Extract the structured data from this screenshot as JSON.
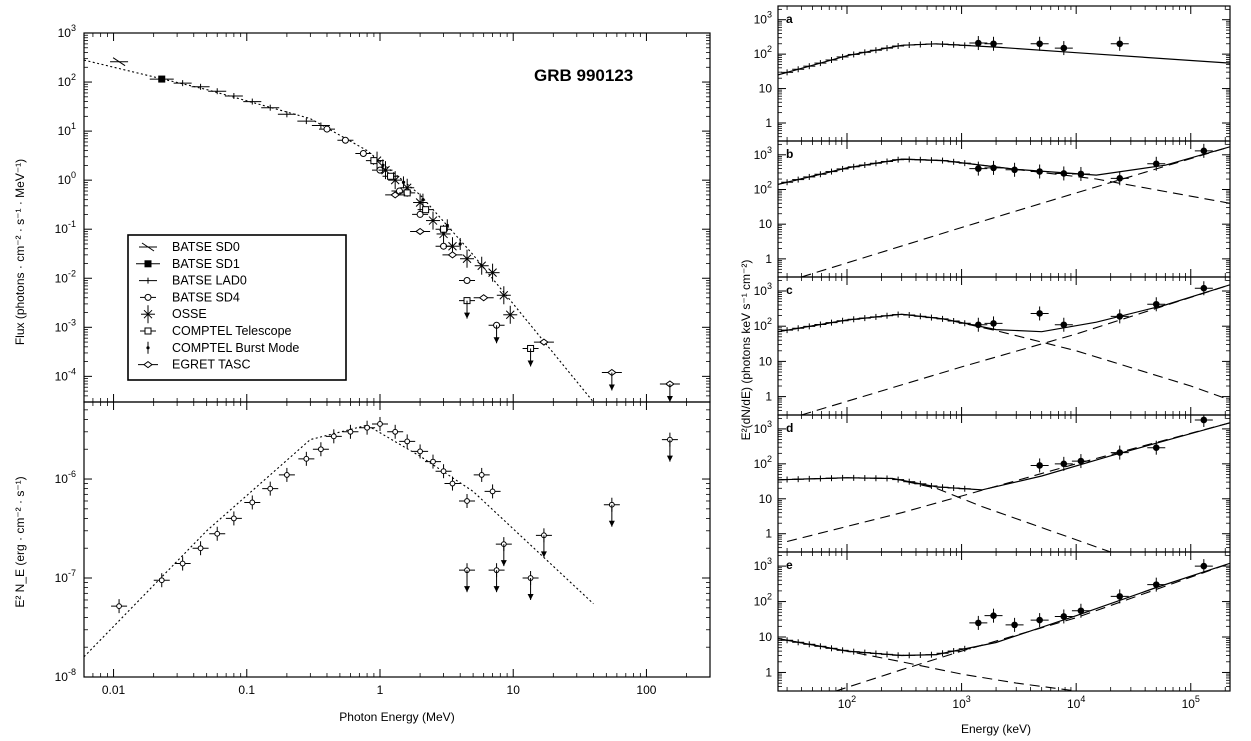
{
  "chart_data": [
    {
      "type": "scatter",
      "panel": "left-top",
      "title": "GRB 990123",
      "xlabel": "Photon Energy (MeV)",
      "ylabel": "Flux (photons · cm⁻² · s⁻¹ · MeV⁻¹)",
      "xscale": "log",
      "yscale": "log",
      "xlim": [
        0.006,
        300
      ],
      "ylim": [
        3e-05,
        1000
      ],
      "x_ticks": [
        0.01,
        0.1,
        1,
        10,
        100
      ],
      "x_tick_labels": [
        "0.01",
        "0.1",
        "1",
        "10",
        "100"
      ],
      "y_ticks": [
        0.0001,
        0.001,
        0.01,
        0.1,
        1,
        10,
        100,
        1000
      ],
      "y_tick_labels": [
        {
          "base": "10",
          "exp": "-4"
        },
        {
          "base": "10",
          "exp": "-3"
        },
        {
          "base": "10",
          "exp": "-2"
        },
        {
          "base": "10",
          "exp": "-1"
        },
        {
          "base": "10",
          "exp": "0"
        },
        {
          "base": "10",
          "exp": "1"
        },
        {
          "base": "10",
          "exp": "2"
        },
        {
          "base": "10",
          "exp": "3"
        }
      ],
      "legend": {
        "placement": "lower-left",
        "entries": [
          "BATSE SD0",
          "BATSE SD1",
          "BATSE LAD0",
          "BATSE SD4",
          "OSSE",
          "COMPTEL Telescope",
          "COMPTEL Burst Mode",
          "EGRET TASC"
        ]
      },
      "model_line": {
        "x": [
          0.006,
          0.05,
          0.3,
          0.8,
          2,
          5,
          40
        ],
        "y": [
          280,
          70,
          18,
          4,
          0.5,
          0.03,
          3e-05
        ]
      },
      "series": [
        {
          "name": "BATSE SD0",
          "marker": "slash",
          "points": [
            {
              "x": 0.011,
              "y": 260
            }
          ]
        },
        {
          "name": "BATSE SD1",
          "marker": "filled-square",
          "points": [
            {
              "x": 0.023,
              "y": 115
            }
          ]
        },
        {
          "name": "BATSE LAD0",
          "marker": "dash",
          "points": [
            {
              "x": 0.033,
              "y": 95
            },
            {
              "x": 0.045,
              "y": 80
            },
            {
              "x": 0.06,
              "y": 65
            },
            {
              "x": 0.08,
              "y": 52
            },
            {
              "x": 0.11,
              "y": 40
            },
            {
              "x": 0.15,
              "y": 30
            },
            {
              "x": 0.2,
              "y": 22
            },
            {
              "x": 0.28,
              "y": 16
            },
            {
              "x": 0.36,
              "y": 13
            }
          ]
        },
        {
          "name": "BATSE SD4",
          "marker": "open-circle",
          "points": [
            {
              "x": 0.4,
              "y": 11
            },
            {
              "x": 0.55,
              "y": 6.5
            },
            {
              "x": 0.75,
              "y": 3.5
            },
            {
              "x": 1.0,
              "y": 1.6
            },
            {
              "x": 1.4,
              "y": 0.6
            },
            {
              "x": 2.0,
              "y": 0.2
            },
            {
              "x": 3.0,
              "y": 0.045
            },
            {
              "x": 4.5,
              "y": 0.009
            },
            {
              "x": 7.5,
              "y": 0.0011
            }
          ]
        },
        {
          "name": "OSSE",
          "marker": "asterisk",
          "points": [
            {
              "x": 0.95,
              "y": 2.5
            },
            {
              "x": 1.1,
              "y": 1.6
            },
            {
              "x": 1.3,
              "y": 1.0
            },
            {
              "x": 1.6,
              "y": 0.7
            },
            {
              "x": 2.0,
              "y": 0.35
            },
            {
              "x": 2.5,
              "y": 0.15
            },
            {
              "x": 3.0,
              "y": 0.08
            },
            {
              "x": 3.5,
              "y": 0.045
            },
            {
              "x": 4.5,
              "y": 0.025
            },
            {
              "x": 5.8,
              "y": 0.018
            },
            {
              "x": 7.0,
              "y": 0.013
            },
            {
              "x": 8.5,
              "y": 0.0045
            },
            {
              "x": 9.5,
              "y": 0.0018
            }
          ]
        },
        {
          "name": "COMPTEL Telescope",
          "marker": "open-square",
          "points": [
            {
              "x": 0.9,
              "y": 2.5
            },
            {
              "x": 1.2,
              "y": 1.2
            },
            {
              "x": 1.6,
              "y": 0.55
            },
            {
              "x": 2.2,
              "y": 0.25
            },
            {
              "x": 3.0,
              "y": 0.1
            },
            {
              "x": 4.5,
              "y": 0.0035
            },
            {
              "x": 13.5,
              "y": 0.00037
            }
          ]
        },
        {
          "name": "COMPTEL Burst Mode",
          "marker": "small-dot",
          "points": [
            {
              "x": 1.05,
              "y": 2.0
            },
            {
              "x": 1.5,
              "y": 0.9
            },
            {
              "x": 2.1,
              "y": 0.4
            },
            {
              "x": 3.2,
              "y": 0.12
            },
            {
              "x": 4.0,
              "y": 0.05
            }
          ]
        },
        {
          "name": "EGRET TASC",
          "marker": "open-diamond",
          "points": [
            {
              "x": 1.3,
              "y": 0.5
            },
            {
              "x": 2.0,
              "y": 0.09
            },
            {
              "x": 3.5,
              "y": 0.03
            },
            {
              "x": 6.0,
              "y": 0.004
            },
            {
              "x": 17,
              "y": 0.0005
            },
            {
              "x": 55,
              "y": 0.00012
            },
            {
              "x": 150,
              "y": 7e-05
            }
          ]
        }
      ]
    },
    {
      "type": "scatter",
      "panel": "left-bottom",
      "xlabel": "Photon Energy (MeV)",
      "ylabel": "E² N_E (erg · cm⁻² · s⁻¹)",
      "xscale": "log",
      "yscale": "log",
      "xlim": [
        0.006,
        300
      ],
      "ylim": [
        1e-08,
        6e-06
      ],
      "y_ticks": [
        1e-08,
        1e-07,
        1e-06
      ],
      "y_tick_labels": [
        {
          "base": "10",
          "exp": "-8"
        },
        {
          "base": "10",
          "exp": "-7"
        },
        {
          "base": "10",
          "exp": "-6"
        }
      ],
      "model_line": {
        "x": [
          0.006,
          0.05,
          0.3,
          0.8,
          2,
          5,
          40
        ],
        "y": [
          1.6e-08,
          3e-07,
          2.5e-06,
          3.5e-06,
          1.7e-06,
          7.5e-07,
          5.5e-08
        ]
      },
      "points": [
        {
          "x": 0.011,
          "y": 5.2e-08
        },
        {
          "x": 0.023,
          "y": 9.5e-08
        },
        {
          "x": 0.033,
          "y": 1.4e-07
        },
        {
          "x": 0.045,
          "y": 2e-07
        },
        {
          "x": 0.06,
          "y": 2.8e-07
        },
        {
          "x": 0.08,
          "y": 4e-07
        },
        {
          "x": 0.11,
          "y": 5.8e-07
        },
        {
          "x": 0.15,
          "y": 8e-07
        },
        {
          "x": 0.2,
          "y": 1.1e-06
        },
        {
          "x": 0.28,
          "y": 1.6e-06
        },
        {
          "x": 0.36,
          "y": 2e-06
        },
        {
          "x": 0.45,
          "y": 2.7e-06
        },
        {
          "x": 0.6,
          "y": 3e-06
        },
        {
          "x": 0.8,
          "y": 3.3e-06
        },
        {
          "x": 1.0,
          "y": 3.6e-06
        },
        {
          "x": 1.3,
          "y": 3e-06
        },
        {
          "x": 1.6,
          "y": 2.4e-06
        },
        {
          "x": 2.0,
          "y": 1.9e-06
        },
        {
          "x": 2.5,
          "y": 1.5e-06
        },
        {
          "x": 3.0,
          "y": 1.2e-06
        },
        {
          "x": 3.5,
          "y": 9e-07
        },
        {
          "x": 4.5,
          "y": 6e-07
        },
        {
          "x": 5.8,
          "y": 1.1e-06
        },
        {
          "x": 7.0,
          "y": 7.5e-07
        },
        {
          "x": 4.5,
          "y": 1.2e-07
        },
        {
          "x": 7.5,
          "y": 1.2e-07
        },
        {
          "x": 8.5,
          "y": 2.2e-07
        },
        {
          "x": 13.5,
          "y": 1e-07
        },
        {
          "x": 17,
          "y": 2.7e-07
        },
        {
          "x": 55,
          "y": 5.5e-07
        },
        {
          "x": 150,
          "y": 2.5e-06
        }
      ]
    },
    {
      "type": "line",
      "panels": "right-a-to-e",
      "xlabel": "Energy (keV)",
      "ylabel": "E²(dN/dE) (photons keV s⁻¹ cm⁻²)",
      "xscale": "log",
      "yscale": "log",
      "xlim": [
        25,
        220000
      ],
      "ylim": [
        0.3,
        2500
      ],
      "x_ticks": [
        100,
        1000,
        10000,
        100000
      ],
      "x_tick_labels": [
        {
          "base": "10",
          "exp": "2"
        },
        {
          "base": "10",
          "exp": "3"
        },
        {
          "base": "10",
          "exp": "4"
        },
        {
          "base": "10",
          "exp": "5"
        }
      ],
      "y_ticks": [
        1,
        10,
        100,
        1000
      ],
      "y_tick_labels": [
        {
          "base": "",
          "exp": "",
          "text": "1"
        },
        {
          "base": "",
          "exp": "",
          "text": "10"
        },
        {
          "base": "10",
          "exp": "2"
        },
        {
          "base": "10",
          "exp": "3"
        }
      ],
      "panels_data": [
        {
          "label": "a",
          "solid": {
            "x": [
              25,
              100,
              300,
              600,
              2000,
              10000,
              220000
            ],
            "y": [
              25,
              90,
              180,
              200,
              160,
              110,
              55
            ]
          },
          "points": [
            {
              "x": 1400,
              "y": 210
            },
            {
              "x": 1900,
              "y": 200
            },
            {
              "x": 4800,
              "y": 200
            },
            {
              "x": 7800,
              "y": 150
            },
            {
              "x": 24000,
              "y": 200
            }
          ]
        },
        {
          "label": "b",
          "solid": {
            "x": [
              25,
              100,
              300,
              700,
              3000,
              15000,
              60000,
              220000
            ],
            "y": [
              140,
              420,
              750,
              680,
              380,
              260,
              500,
              1700
            ]
          },
          "dash1": {
            "x": [
              25,
              100,
              300,
              700,
              3000,
              15000,
              220000
            ],
            "y": [
              140,
              420,
              750,
              680,
              380,
              200,
              40
            ]
          },
          "dash2": {
            "x": [
              40,
              1000,
              10000,
              220000
            ],
            "y": [
              0.3,
              8,
              80,
              1700
            ]
          },
          "points": [
            {
              "x": 1400,
              "y": 400
            },
            {
              "x": 1900,
              "y": 420
            },
            {
              "x": 2900,
              "y": 370
            },
            {
              "x": 4800,
              "y": 330
            },
            {
              "x": 7800,
              "y": 290
            },
            {
              "x": 11000,
              "y": 280
            },
            {
              "x": 24000,
              "y": 210
            },
            {
              "x": 50000,
              "y": 550
            },
            {
              "x": 130000,
              "y": 1300
            }
          ]
        },
        {
          "label": "c",
          "solid": {
            "x": [
              25,
              100,
              300,
              700,
              2000,
              5000,
              15000,
              60000,
              220000
            ],
            "y": [
              70,
              150,
              220,
              160,
              80,
              70,
              130,
              400,
              1500
            ]
          },
          "dash1": {
            "x": [
              25,
              100,
              300,
              700,
              2000,
              10000,
              100000,
              220000
            ],
            "y": [
              70,
              150,
              220,
              160,
              75,
              20,
              2,
              0.8
            ]
          },
          "dash2": {
            "x": [
              40,
              1000,
              10000,
              220000
            ],
            "y": [
              0.3,
              7,
              60,
              1500
            ]
          },
          "points": [
            {
              "x": 1400,
              "y": 110
            },
            {
              "x": 1900,
              "y": 120
            },
            {
              "x": 4800,
              "y": 230
            },
            {
              "x": 7800,
              "y": 110
            },
            {
              "x": 24000,
              "y": 190
            },
            {
              "x": 50000,
              "y": 420
            },
            {
              "x": 130000,
              "y": 1200
            }
          ]
        },
        {
          "label": "d",
          "solid": {
            "x": [
              25,
              100,
              250,
              600,
              1500,
              5000,
              20000,
              80000,
              220000
            ],
            "y": [
              35,
              40,
              38,
              22,
              18,
              45,
              170,
              600,
              1500
            ]
          },
          "dash1": {
            "x": [
              25,
              100,
              250,
              600,
              1500,
              5000,
              20000
            ],
            "y": [
              35,
              40,
              38,
              20,
              6,
              1.5,
              0.3
            ]
          },
          "dash2": {
            "x": [
              30,
              300,
              1000,
              10000,
              220000
            ],
            "y": [
              0.6,
              4,
              12,
              100,
              1500
            ]
          },
          "points": [
            {
              "x": 4800,
              "y": 90
            },
            {
              "x": 7800,
              "y": 100
            },
            {
              "x": 11000,
              "y": 120
            },
            {
              "x": 24000,
              "y": 210
            },
            {
              "x": 50000,
              "y": 290
            },
            {
              "x": 130000,
              "y": 1800
            }
          ]
        },
        {
          "label": "e",
          "solid": {
            "x": [
              25,
              100,
              300,
              600,
              2000,
              10000,
              50000,
              220000
            ],
            "y": [
              9,
              4,
              3,
              3.2,
              7,
              40,
              250,
              1200
            ]
          },
          "dash1": {
            "x": [
              25,
              100,
              300,
              1000,
              3000,
              10000
            ],
            "y": [
              9,
              4,
              2,
              0.9,
              0.5,
              0.3
            ]
          },
          "dash2": {
            "x": [
              80,
              300,
              1000,
              10000,
              220000
            ],
            "y": [
              0.3,
              1.2,
              4,
              35,
              1200
            ]
          },
          "points": [
            {
              "x": 1400,
              "y": 25
            },
            {
              "x": 1900,
              "y": 40
            },
            {
              "x": 2900,
              "y": 22
            },
            {
              "x": 4800,
              "y": 30
            },
            {
              "x": 7800,
              "y": 38
            },
            {
              "x": 11000,
              "y": 55
            },
            {
              "x": 24000,
              "y": 140
            },
            {
              "x": 50000,
              "y": 300
            },
            {
              "x": 130000,
              "y": 1000
            }
          ]
        }
      ]
    }
  ]
}
